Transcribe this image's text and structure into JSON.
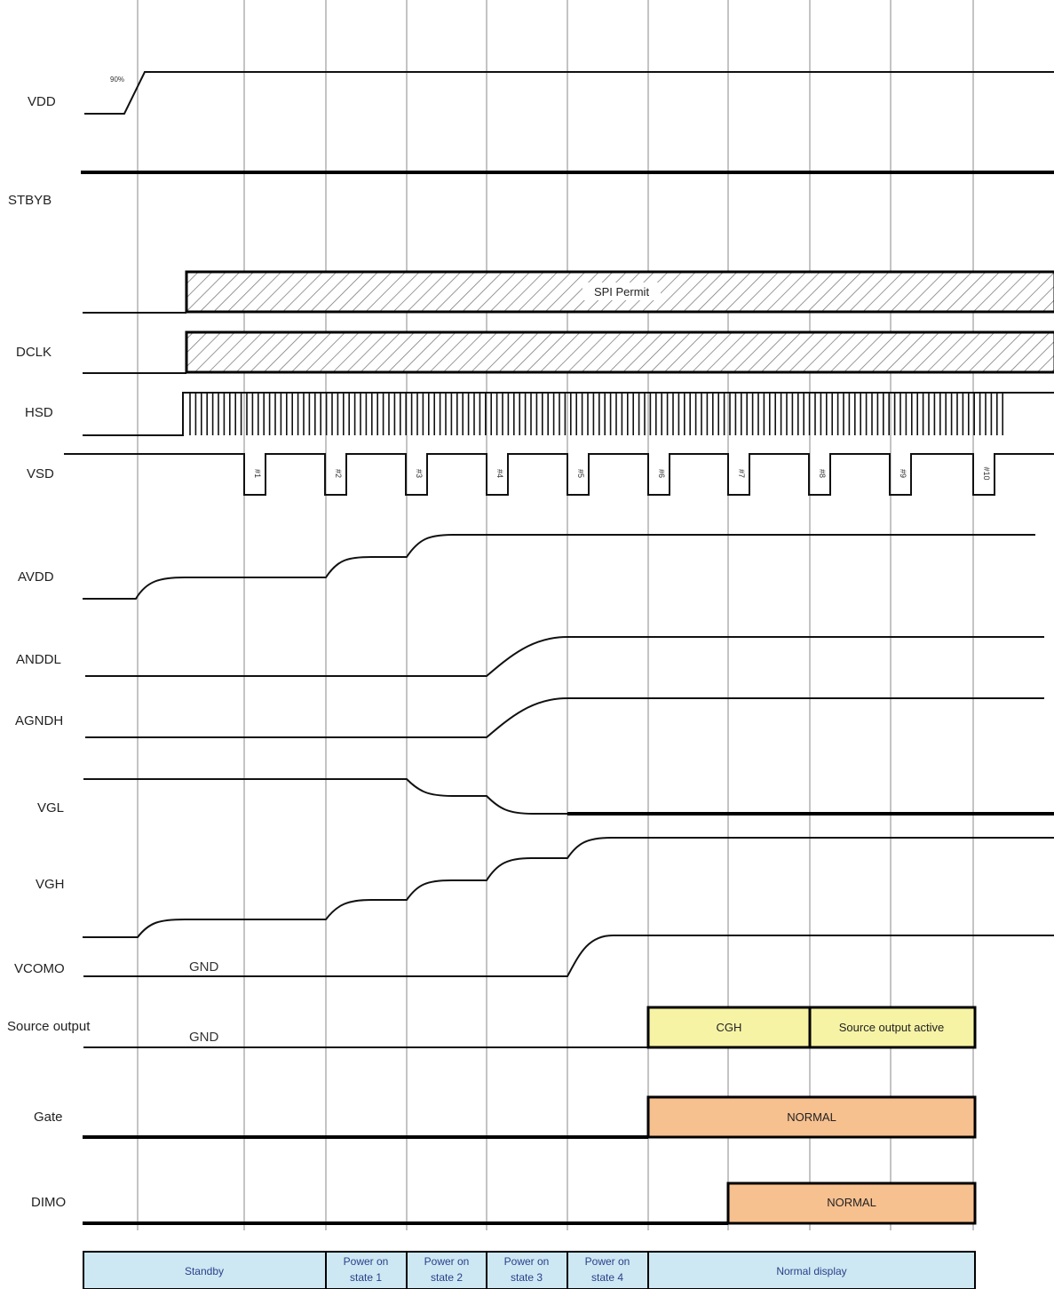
{
  "signals": {
    "vdd": "VDD",
    "stbyb": "STBYB",
    "dclk": "DCLK",
    "hsd": "HSD",
    "vsd": "VSD",
    "avdd": "AVDD",
    "anddl": "ANDDL",
    "agndh": "AGNDH",
    "vgl": "VGL",
    "vgh": "VGH",
    "vcomo": "VCOMO",
    "source_output": "Source output",
    "gate": "Gate",
    "dimo": "DIMO"
  },
  "annotations": {
    "vdd_threshold": "90%",
    "spi_permit": "SPI Permit",
    "gnd_vcomo": "GND",
    "gnd_source": "GND"
  },
  "vsd_frames": [
    "#1",
    "#2",
    "#3",
    "#4",
    "#5",
    "#6",
    "#7",
    "#8",
    "#9",
    "#10"
  ],
  "boxes": {
    "source_cgh": "CGH",
    "source_active": "Source output active",
    "gate_normal": "NORMAL",
    "dimo_normal": "NORMAL"
  },
  "states": [
    {
      "line1": "Standby",
      "line2": ""
    },
    {
      "line1": "Power on",
      "line2": "state 1"
    },
    {
      "line1": "Power on",
      "line2": "state 2"
    },
    {
      "line1": "Power on",
      "line2": "state 3"
    },
    {
      "line1": "Power on",
      "line2": "state 4"
    },
    {
      "line1": "Normal display",
      "line2": ""
    }
  ],
  "colors": {
    "yellow_box": "#f6f3a5",
    "orange_box": "#f7c08f",
    "state_fill": "#cde8f3",
    "state_text": "#2b3f8a"
  }
}
